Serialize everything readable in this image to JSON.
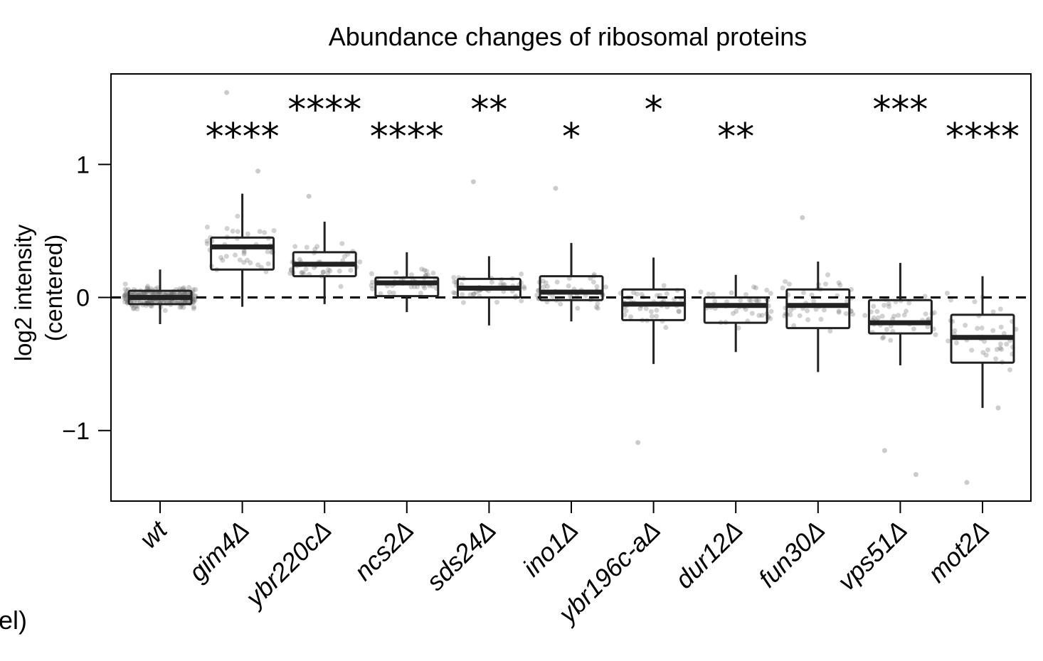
{
  "chart_data": {
    "type": "box",
    "title": "Abundance changes of ribosomal proteins",
    "ylabel_line1": "log2 intensity",
    "ylabel_line2": "(centered)",
    "xlabel": "",
    "ylim": [
      -1.53,
      1.68
    ],
    "yticks": [
      1,
      0,
      -1
    ],
    "ytick_labels": [
      "1",
      "0",
      "−1"
    ],
    "reference_line": {
      "y": 0,
      "style": "dashed"
    },
    "categories": [
      "wt",
      "gim4Δ",
      "ybr220cΔ",
      "ncs2Δ",
      "sds24Δ",
      "ino1Δ",
      "ybr196c-aΔ",
      "dur12Δ",
      "fun30Δ",
      "vps51Δ",
      "mot2Δ"
    ],
    "boxes": [
      {
        "q1": -0.05,
        "median": 0.0,
        "q3": 0.05,
        "whisker_low": -0.2,
        "whisker_high": 0.21
      },
      {
        "q1": 0.21,
        "median": 0.38,
        "q3": 0.45,
        "whisker_low": -0.07,
        "whisker_high": 0.78
      },
      {
        "q1": 0.16,
        "median": 0.25,
        "q3": 0.34,
        "whisker_low": -0.05,
        "whisker_high": 0.57
      },
      {
        "q1": 0.01,
        "median": 0.11,
        "q3": 0.15,
        "whisker_low": -0.11,
        "whisker_high": 0.34
      },
      {
        "q1": 0.0,
        "median": 0.07,
        "q3": 0.14,
        "whisker_low": -0.21,
        "whisker_high": 0.31
      },
      {
        "q1": -0.02,
        "median": 0.04,
        "q3": 0.16,
        "whisker_low": -0.18,
        "whisker_high": 0.41
      },
      {
        "q1": -0.17,
        "median": -0.05,
        "q3": 0.06,
        "whisker_low": -0.5,
        "whisker_high": 0.3
      },
      {
        "q1": -0.19,
        "median": -0.06,
        "q3": 0.0,
        "whisker_low": -0.41,
        "whisker_high": 0.17
      },
      {
        "q1": -0.23,
        "median": -0.06,
        "q3": 0.06,
        "whisker_low": -0.56,
        "whisker_high": 0.27
      },
      {
        "q1": -0.27,
        "median": -0.19,
        "q3": -0.02,
        "whisker_low": -0.51,
        "whisker_high": 0.26
      },
      {
        "q1": -0.49,
        "median": -0.3,
        "q3": -0.13,
        "whisker_low": -0.83,
        "whisker_high": 0.16
      }
    ],
    "significance": [
      "",
      "****",
      "****",
      "****",
      "**",
      "*",
      "*",
      "**",
      "",
      "***",
      "****"
    ],
    "significance_row": [
      0,
      2,
      1,
      2,
      1,
      2,
      1,
      2,
      0,
      1,
      2
    ],
    "outliers": [
      [],
      [
        1.54,
        0.95
      ],
      [
        0.76
      ],
      [],
      [
        0.87
      ],
      [
        0.82
      ],
      [
        -1.09
      ],
      [],
      [
        0.6
      ],
      [
        -1.15,
        -1.33
      ],
      [
        -1.39,
        -0.83
      ]
    ],
    "grid": false
  },
  "stray_text": "el)"
}
